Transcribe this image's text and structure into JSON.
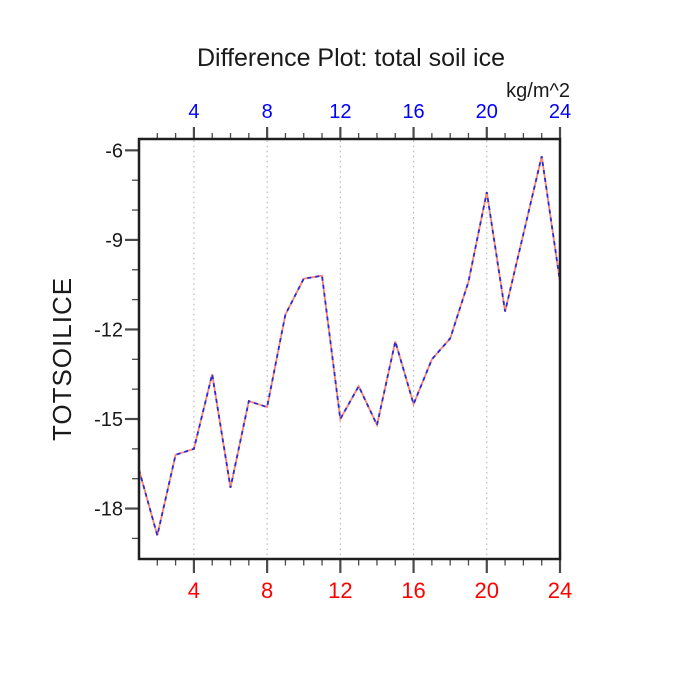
{
  "title": "Difference Plot: total soil ice",
  "axes": {
    "top": {
      "unit_label": "kg/m^2"
    },
    "left": {
      "title": "TOTSOILICE"
    }
  },
  "chart_data": {
    "type": "line",
    "title": "Difference Plot: total soil ice",
    "ylabel": "TOTSOILICE",
    "top_axis_unit": "kg/m^2",
    "x": [
      1,
      2,
      3,
      4,
      5,
      6,
      7,
      8,
      9,
      10,
      11,
      12,
      13,
      14,
      15,
      16,
      17,
      18,
      19,
      20,
      21,
      22,
      23,
      24
    ],
    "values": [
      -16.7,
      -18.9,
      -16.2,
      -16.0,
      -13.5,
      -17.3,
      -14.4,
      -14.6,
      -11.5,
      -10.3,
      -10.2,
      -15.0,
      -13.9,
      -15.2,
      -12.4,
      -14.5,
      -13.0,
      -12.3,
      -10.4,
      -7.4,
      -11.4,
      -8.8,
      -6.2,
      -10.4
    ],
    "xlim": [
      1,
      24
    ],
    "ylim": [
      -19.69,
      -5.62
    ],
    "x_major_ticks": [
      4,
      8,
      12,
      16,
      20,
      24
    ],
    "x_minor_ticks": [
      2,
      3,
      5,
      6,
      7,
      9,
      10,
      11,
      13,
      14,
      15,
      17,
      18,
      19,
      21,
      22,
      23
    ],
    "y_major_ticks": [
      -6,
      -9,
      -12,
      -15,
      -18
    ],
    "y_minor_ticks": [
      -19,
      -17,
      -16,
      -14,
      -13,
      -11,
      -10,
      -8,
      -7
    ],
    "grid_x": [
      4,
      8,
      12,
      16,
      20
    ],
    "grid_style": "vertical-dotted",
    "legend": "none",
    "colors": {
      "top_tick_labels": "#0000ff",
      "bottom_tick_labels": "#ff0000",
      "left_tick_labels": "#1a1a1a",
      "line_underlay": "#fa8577",
      "line_overlay_dashed": "#2b2bd5",
      "gridline": "#b5b5b5",
      "frame": "#1f1f1f",
      "tick": "#4a4a4a"
    }
  }
}
